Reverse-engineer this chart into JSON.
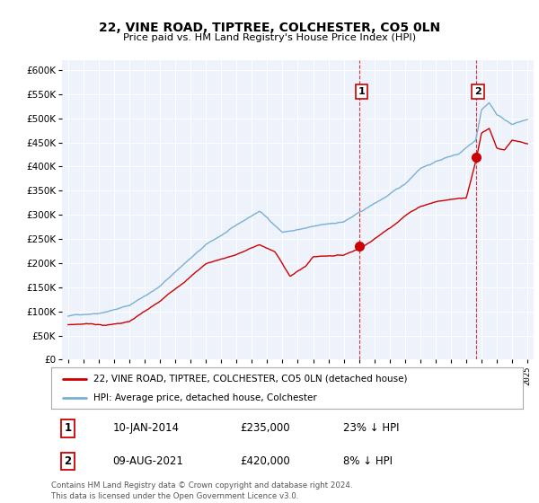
{
  "title": "22, VINE ROAD, TIPTREE, COLCHESTER, CO5 0LN",
  "subtitle": "Price paid vs. HM Land Registry's House Price Index (HPI)",
  "ylim": [
    0,
    620000
  ],
  "ytick_vals": [
    0,
    50000,
    100000,
    150000,
    200000,
    250000,
    300000,
    350000,
    400000,
    450000,
    500000,
    550000,
    600000
  ],
  "hpi_color": "#7ab0d4",
  "price_color": "#cc0000",
  "annotation1_date": 2014.03,
  "annotation1_price": 235000,
  "annotation2_date": 2021.62,
  "annotation2_price": 420000,
  "table_data": [
    [
      "1",
      "10-JAN-2014",
      "£235,000",
      "23% ↓ HPI"
    ],
    [
      "2",
      "09-AUG-2021",
      "£420,000",
      "8% ↓ HPI"
    ]
  ],
  "legend_house": "22, VINE ROAD, TIPTREE, COLCHESTER, CO5 0LN (detached house)",
  "legend_hpi": "HPI: Average price, detached house, Colchester",
  "footer": "Contains HM Land Registry data © Crown copyright and database right 2024.\nThis data is licensed under the Open Government Licence v3.0.",
  "background_color": "#eef2fb",
  "hpi_anchors_x": [
    1995.0,
    1997.0,
    1999.0,
    2001.0,
    2002.5,
    2004.0,
    2007.5,
    2009.0,
    2010.0,
    2011.0,
    2013.0,
    2014.03,
    2016.0,
    2017.0,
    2018.0,
    2019.5,
    2020.5,
    2021.62,
    2022.0,
    2022.5,
    2023.0,
    2024.0,
    2025.0
  ],
  "hpi_anchors_y": [
    90000,
    98000,
    115000,
    155000,
    200000,
    240000,
    308000,
    265000,
    270000,
    275000,
    285000,
    303000,
    340000,
    360000,
    395000,
    415000,
    425000,
    456000,
    520000,
    535000,
    510000,
    490000,
    500000
  ],
  "price_anchors_x": [
    1995.0,
    1996.5,
    1997.5,
    1999.0,
    2001.0,
    2002.5,
    2004.0,
    2006.0,
    2007.5,
    2008.5,
    2009.5,
    2010.5,
    2011.0,
    2012.0,
    2013.0,
    2014.03,
    2015.0,
    2016.0,
    2017.0,
    2018.0,
    2019.0,
    2020.0,
    2021.0,
    2021.62,
    2022.0,
    2022.5,
    2023.0,
    2023.5,
    2024.0,
    2024.5,
    2025.0
  ],
  "price_anchors_y": [
    72000,
    75000,
    72000,
    80000,
    120000,
    160000,
    200000,
    220000,
    240000,
    225000,
    175000,
    195000,
    215000,
    218000,
    220000,
    235000,
    255000,
    278000,
    305000,
    325000,
    335000,
    340000,
    345000,
    420000,
    480000,
    490000,
    450000,
    445000,
    465000,
    460000,
    455000
  ]
}
